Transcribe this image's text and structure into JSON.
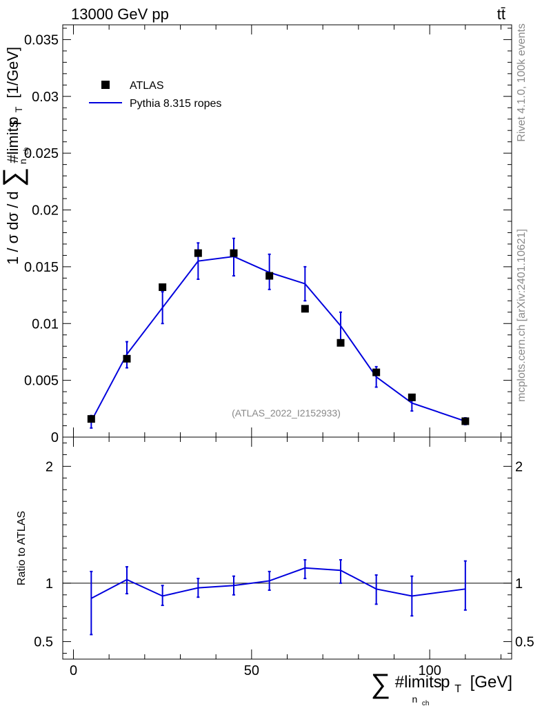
{
  "header": {
    "left": "13000 GeV pp",
    "right": "tt̄"
  },
  "side_labels": {
    "rivet": "Rivet 4.1.0,  100k events",
    "source": "mcplots.cern.ch [arXiv:2401.10621]"
  },
  "watermark": "(ATLAS_2022_I2152933)",
  "legend": {
    "data_label": "ATLAS",
    "mc_label": "Pythia 8.315 ropes"
  },
  "colors": {
    "mc": "#0000dd",
    "data": "#000000",
    "reference_line": "#000000"
  },
  "chart_data": [
    {
      "type": "scatter",
      "title": "",
      "ylabel": "1 / σ dσ / d ∑#limits p_T [1/GeV]",
      "ylabel_parts": {
        "prefix": "1 / σ dσ / d",
        "sum": "∑",
        "limits": "#limits",
        "sub": "n",
        "subsub": "ch",
        "p": "p",
        "t": "T",
        "unit": "[1/GeV]"
      },
      "xlim": [
        -3,
        123
      ],
      "ylim": [
        0,
        0.0363
      ],
      "yticks": [
        0,
        0.005,
        0.01,
        0.015,
        0.02,
        0.025,
        0.03,
        0.035
      ],
      "ytick_labels": [
        "0",
        "0.005",
        "0.01",
        "0.015",
        "0.02",
        "0.025",
        "0.03",
        "0.035"
      ],
      "x": [
        5,
        15,
        25,
        35,
        45,
        55,
        65,
        75,
        85,
        95,
        110
      ],
      "series": [
        {
          "name": "ATLAS",
          "marker": "square",
          "values": [
            0.0016,
            0.0069,
            0.0132,
            0.0162,
            0.0162,
            0.0142,
            0.0113,
            0.0083,
            0.0057,
            0.0035,
            0.0014
          ]
        },
        {
          "name": "Pythia 8.315 ropes",
          "line": true,
          "values": [
            0.0014,
            0.0073,
            0.0114,
            0.0155,
            0.0159,
            0.0145,
            0.0135,
            0.0098,
            0.0053,
            0.003,
            0.0014
          ],
          "err_low": [
            0.0008,
            0.0061,
            0.01,
            0.0139,
            0.0142,
            0.013,
            0.012,
            0.0085,
            0.0044,
            0.0023,
            0.0011
          ],
          "err_high": [
            0.0019,
            0.0084,
            0.0128,
            0.0171,
            0.0175,
            0.0161,
            0.015,
            0.011,
            0.0062,
            0.0037,
            0.0017
          ]
        }
      ]
    },
    {
      "type": "line",
      "title": "",
      "ylabel": "Ratio to ATLAS",
      "xlabel": "∑#limits p_T [GeV]",
      "xlabel_parts": {
        "sum": "∑",
        "limits": "#limits",
        "sub": "n",
        "subsub": "ch",
        "p": "p",
        "t": "T",
        "unit": "[GeV]"
      },
      "xlim": [
        -3,
        123
      ],
      "ylim": [
        0.35,
        2.25
      ],
      "xticks": [
        0,
        50,
        100
      ],
      "xtick_labels": [
        "0",
        "50",
        "100"
      ],
      "yticks": [
        0.5,
        1,
        2
      ],
      "ytick_labels": [
        "0.5",
        "1",
        "2"
      ],
      "reference_line": 1,
      "x": [
        5,
        15,
        25,
        35,
        45,
        55,
        65,
        75,
        85,
        95,
        110
      ],
      "series": [
        {
          "name": "Pythia 8.315 ropes / ATLAS",
          "values": [
            0.87,
            1.03,
            0.89,
            0.96,
            0.98,
            1.02,
            1.13,
            1.11,
            0.95,
            0.89,
            0.95
          ],
          "err_low": [
            0.56,
            0.91,
            0.81,
            0.88,
            0.9,
            0.94,
            1.04,
            1.0,
            0.82,
            0.72,
            0.77
          ],
          "err_high": [
            1.1,
            1.14,
            0.98,
            1.04,
            1.06,
            1.1,
            1.2,
            1.2,
            1.07,
            1.06,
            1.19
          ]
        }
      ]
    }
  ]
}
